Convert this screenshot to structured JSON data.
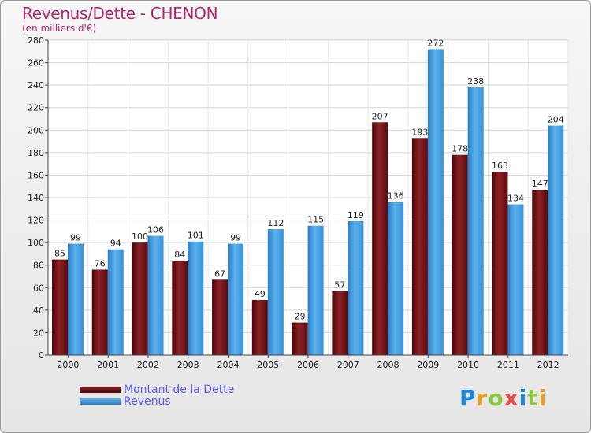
{
  "title": "Revenus/Dette - CHENON",
  "subtitle": "(en milliers d'€)",
  "logo": {
    "text": "Proxiti",
    "letters": [
      {
        "ch": "P",
        "color": "#1e88d8"
      },
      {
        "ch": "r",
        "color": "#e8a020"
      },
      {
        "ch": "o",
        "color": "#8cc63f"
      },
      {
        "ch": "x",
        "color": "#e54a4a"
      },
      {
        "ch": "i",
        "color": "#1e88d8"
      },
      {
        "ch": "t",
        "color": "#8cc63f"
      },
      {
        "ch": "i",
        "color": "#e8a020"
      }
    ]
  },
  "chart_data": {
    "type": "bar",
    "title": "Revenus/Dette - CHENON",
    "subtitle": "(en milliers d'€)",
    "categories": [
      "2000",
      "2001",
      "2002",
      "2003",
      "2004",
      "2005",
      "2006",
      "2007",
      "2008",
      "2009",
      "2010",
      "2011",
      "2012"
    ],
    "series": [
      {
        "name": "Montant de la Dette",
        "color": "#6b0f12",
        "values": [
          85,
          76,
          100,
          84,
          67,
          49,
          29,
          57,
          207,
          193,
          178,
          163,
          147
        ]
      },
      {
        "name": "Revenus",
        "color": "#3f9de0",
        "values": [
          99,
          94,
          106,
          101,
          99,
          112,
          115,
          119,
          136,
          272,
          238,
          134,
          204
        ]
      }
    ],
    "ylim": [
      0,
      280
    ],
    "yticks": [
      0,
      20,
      40,
      60,
      80,
      100,
      120,
      140,
      160,
      180,
      200,
      220,
      240,
      260,
      280
    ],
    "grid": true,
    "legend": "bottom-left"
  }
}
